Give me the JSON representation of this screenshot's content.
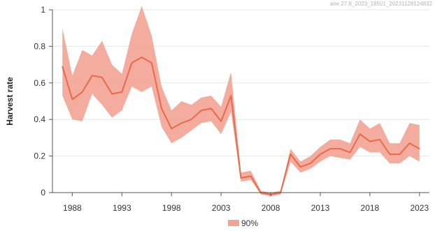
{
  "chart_data": {
    "type": "line",
    "title": "",
    "watermark": "ane.27.8_2023_18501_20231128124832",
    "xlabel": "",
    "ylabel": "Harvest rate",
    "xlim": [
      1986,
      2024
    ],
    "ylim": [
      0,
      1
    ],
    "grid": true,
    "x_ticks": [
      1988,
      1993,
      1998,
      2003,
      2008,
      2013,
      2018,
      2023
    ],
    "y_ticks": [
      0,
      0.2,
      0.4,
      0.6,
      0.8,
      1
    ],
    "y_tick_labels": [
      "0",
      "0.2",
      "0.4",
      "0.6",
      "0.8",
      "1"
    ],
    "x": [
      1987,
      1988,
      1989,
      1990,
      1991,
      1992,
      1993,
      1994,
      1995,
      1996,
      1997,
      1998,
      1999,
      2000,
      2001,
      2002,
      2003,
      2004,
      2005,
      2006,
      2007,
      2008,
      2009,
      2010,
      2011,
      2012,
      2013,
      2014,
      2015,
      2016,
      2017,
      2018,
      2019,
      2020,
      2021,
      2022,
      2023
    ],
    "series": [
      {
        "name": "",
        "values": [
          0.69,
          0.51,
          0.55,
          0.64,
          0.63,
          0.54,
          0.55,
          0.71,
          0.74,
          0.71,
          0.46,
          0.35,
          0.38,
          0.4,
          0.45,
          0.46,
          0.39,
          0.53,
          0.08,
          0.09,
          0.0,
          -0.01,
          0.0,
          0.21,
          0.14,
          0.16,
          0.21,
          0.24,
          0.24,
          0.22,
          0.32,
          0.28,
          0.29,
          0.21,
          0.21,
          0.27,
          0.24
        ],
        "lower": [
          0.53,
          0.4,
          0.39,
          0.54,
          0.48,
          0.41,
          0.45,
          0.58,
          0.55,
          0.58,
          0.36,
          0.27,
          0.3,
          0.34,
          0.38,
          0.39,
          0.32,
          0.44,
          0.06,
          0.07,
          -0.01,
          -0.02,
          -0.01,
          0.17,
          0.11,
          0.13,
          0.17,
          0.2,
          0.19,
          0.18,
          0.25,
          0.22,
          0.22,
          0.16,
          0.16,
          0.2,
          0.17
        ],
        "upper": [
          0.9,
          0.64,
          0.78,
          0.75,
          0.83,
          0.7,
          0.65,
          0.87,
          1.02,
          0.86,
          0.58,
          0.45,
          0.5,
          0.48,
          0.52,
          0.53,
          0.47,
          0.66,
          0.11,
          0.12,
          0.01,
          0.0,
          0.01,
          0.24,
          0.17,
          0.2,
          0.25,
          0.29,
          0.29,
          0.27,
          0.4,
          0.35,
          0.38,
          0.27,
          0.27,
          0.38,
          0.37
        ]
      }
    ],
    "legend": {
      "position": "bottom-center",
      "label": "90%"
    },
    "colors": {
      "line": "#e86a4a",
      "band": "#f2a394",
      "grid": "#e6e6e6",
      "axis": "#555555"
    }
  }
}
